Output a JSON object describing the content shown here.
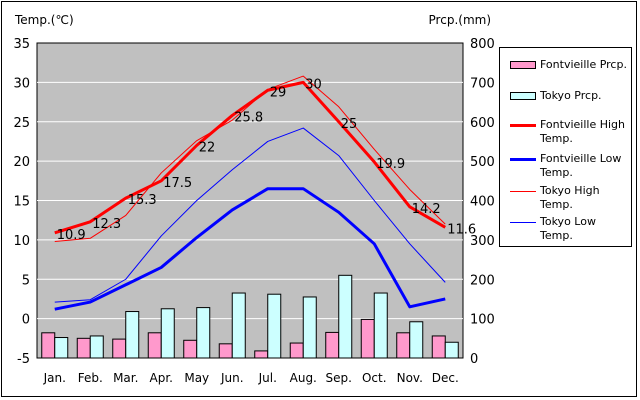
{
  "chart_data": {
    "type": "bar+line",
    "left_axis_title": "Temp.(℃)",
    "right_axis_title": "Prcp.(mm)",
    "categories": [
      "Jan.",
      "Feb.",
      "Mar.",
      "Apr.",
      "May",
      "Jun.",
      "Jul.",
      "Aug.",
      "Sep.",
      "Oct.",
      "Nov.",
      "Dec."
    ],
    "left_ticks": [
      "35",
      "30",
      "25",
      "20",
      "15",
      "10",
      "5",
      "0",
      "-5"
    ],
    "right_ticks": [
      "800",
      "700",
      "600",
      "500",
      "400",
      "300",
      "200",
      "100",
      "0"
    ],
    "ylim_temp": [
      -5,
      35
    ],
    "ylim_prcp": [
      0,
      800
    ],
    "precip_series": [
      {
        "name": "Fontvieille Prcp.",
        "color": "#ff99cc",
        "values": [
          64,
          50,
          48,
          64,
          45,
          36,
          18,
          38,
          65,
          98,
          64,
          56
        ]
      },
      {
        "name": "Tokyo Prcp.",
        "color": "#ccffff",
        "values": [
          52,
          56,
          118,
          125,
          128,
          165,
          162,
          155,
          210,
          165,
          92,
          40
        ]
      }
    ],
    "temp_series": [
      {
        "name": "Fontvieille High Temp.",
        "color": "#ff0000",
        "width": 3,
        "values": [
          10.9,
          12.3,
          15.3,
          17.5,
          22,
          25.8,
          29,
          30,
          25,
          19.9,
          14.2,
          11.6
        ]
      },
      {
        "name": "Fontvieille Low Temp.",
        "color": "#0000ff",
        "width": 3,
        "values": [
          1.2,
          2.1,
          4.3,
          6.5,
          10.3,
          13.8,
          16.5,
          16.5,
          13.5,
          9.5,
          1.5,
          2.5
        ]
      },
      {
        "name": "Tokyo High Temp.",
        "color": "#ff0000",
        "width": 1,
        "values": [
          9.8,
          10.2,
          13.1,
          18.5,
          22.6,
          25.2,
          29.1,
          30.8,
          26.9,
          21.5,
          16.4,
          12.0
        ]
      },
      {
        "name": "Tokyo Low Temp.",
        "color": "#0000ff",
        "width": 1,
        "values": [
          2.1,
          2.4,
          5.0,
          10.5,
          15.0,
          18.9,
          22.5,
          24.2,
          20.7,
          15.0,
          9.5,
          4.6
        ]
      }
    ],
    "data_labels": [
      "10.9",
      "12.3",
      "15.3",
      "17.5",
      "22",
      "25.8",
      "29",
      "30",
      "25",
      "19.9",
      "14.2",
      "11.6"
    ],
    "grid": true,
    "legend_position": "right"
  }
}
